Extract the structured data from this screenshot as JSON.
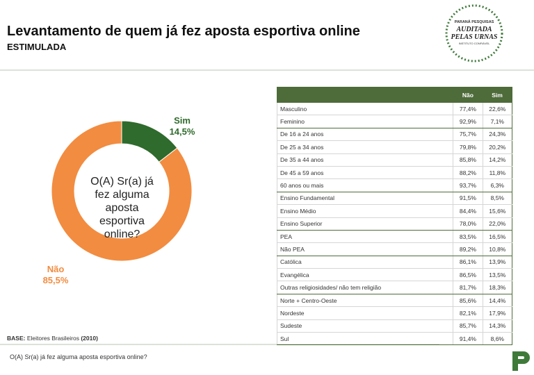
{
  "header": {
    "title": "Levantamento de quem já fez aposta esportiva online",
    "subtitle": "ESTIMULADA"
  },
  "logo": {
    "line1": "PARANÁ PESQUISAS",
    "line2": "AUDITADA",
    "line3": "PELAS URNAS",
    "line4": "INSTITUTO CONFIÁVEL"
  },
  "chart_data": {
    "type": "pie",
    "categories": [
      "Sim",
      "Não"
    ],
    "values": [
      14.5,
      85.5
    ],
    "value_labels": [
      "14,5%",
      "85,5%"
    ],
    "colors": [
      "#2f6b2c",
      "#f28c40"
    ],
    "center_text": "O(A) Sr(a) já fez alguma aposta esportiva online?"
  },
  "table": {
    "columns": [
      "Não",
      "Sim"
    ],
    "groups": [
      [
        [
          "Masculino",
          "77,4%",
          "22,6%"
        ],
        [
          "Feminino",
          "92,9%",
          "7,1%"
        ]
      ],
      [
        [
          "De 16 a 24 anos",
          "75,7%",
          "24,3%"
        ],
        [
          "De 25 a 34 anos",
          "79,8%",
          "20,2%"
        ],
        [
          "De 35 a 44 anos",
          "85,8%",
          "14,2%"
        ],
        [
          "De 45 a 59 anos",
          "88,2%",
          "11,8%"
        ],
        [
          "60 anos ou mais",
          "93,7%",
          "6,3%"
        ]
      ],
      [
        [
          "Ensino Fundamental",
          "91,5%",
          "8,5%"
        ],
        [
          "Ensino Médio",
          "84,4%",
          "15,6%"
        ],
        [
          "Ensino Superior",
          "78,0%",
          "22,0%"
        ]
      ],
      [
        [
          "PEA",
          "83,5%",
          "16,5%"
        ],
        [
          "Não PEA",
          "89,2%",
          "10,8%"
        ]
      ],
      [
        [
          "Católica",
          "86,1%",
          "13,9%"
        ],
        [
          "Evangélica",
          "86,5%",
          "13,5%"
        ],
        [
          "Outras religiosidades/ não tem religião",
          "81,7%",
          "18,3%"
        ]
      ],
      [
        [
          "Norte + Centro-Oeste",
          "85,6%",
          "14,4%"
        ],
        [
          "Nordeste",
          "82,1%",
          "17,9%"
        ],
        [
          "Sudeste",
          "85,7%",
          "14,3%"
        ],
        [
          "Sul",
          "91,4%",
          "8,6%"
        ]
      ]
    ]
  },
  "base": {
    "label": "BASE:",
    "text": "Eleitores Brasileiros",
    "n": "(2010)"
  },
  "footer": {
    "question": "O(A) Sr(a) já fez alguma aposta esportiva online?"
  }
}
